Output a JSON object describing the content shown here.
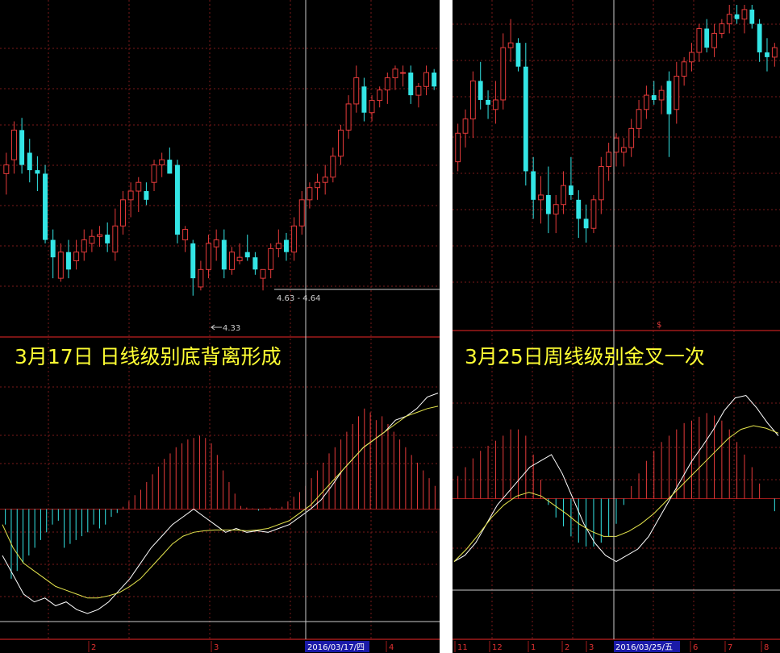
{
  "colors": {
    "background": "#000000",
    "up": "#e53a3a",
    "down": "#33e5e5",
    "grid": "#7a1a1a",
    "border": "#a01a1a",
    "dif": "#ffffff",
    "dea": "#e6e64d",
    "annotation": "#ffff33",
    "date_box": "#1a1aa8"
  },
  "chart_data": [
    {
      "type": "candlestick",
      "panel": "left-daily",
      "annotation": "3月17日 日线级别底背离形成",
      "price_labels": {
        "low_marker": "4.33",
        "cursor_range": "4.63 - 4.64"
      },
      "cursor_date": "2016/03/17/四",
      "x_tick_labels": [
        "2",
        "3",
        "4"
      ],
      "price_range": [
        4.1,
        5.95
      ],
      "candles": [
        [
          5.0,
          5.12,
          4.88,
          5.05
        ],
        [
          5.08,
          5.3,
          5.0,
          5.25
        ],
        [
          5.25,
          5.32,
          5.0,
          5.05
        ],
        [
          5.12,
          5.2,
          4.95,
          5.02
        ],
        [
          5.02,
          5.1,
          4.9,
          5.0
        ],
        [
          5.0,
          5.05,
          4.6,
          4.62
        ],
        [
          4.62,
          4.68,
          4.4,
          4.52
        ],
        [
          4.4,
          4.6,
          4.38,
          4.55
        ],
        [
          4.55,
          4.62,
          4.4,
          4.45
        ],
        [
          4.5,
          4.62,
          4.45,
          4.55
        ],
        [
          4.55,
          4.68,
          4.5,
          4.62
        ],
        [
          4.6,
          4.68,
          4.55,
          4.64
        ],
        [
          4.64,
          4.7,
          4.58,
          4.65
        ],
        [
          4.65,
          4.72,
          4.55,
          4.6
        ],
        [
          4.55,
          4.8,
          4.5,
          4.7
        ],
        [
          4.7,
          4.9,
          4.65,
          4.85
        ],
        [
          4.85,
          4.95,
          4.75,
          4.9
        ],
        [
          4.9,
          4.98,
          4.78,
          4.95
        ],
        [
          4.9,
          4.95,
          4.82,
          4.85
        ],
        [
          4.95,
          5.08,
          4.9,
          5.05
        ],
        [
          5.05,
          5.12,
          4.98,
          5.08
        ],
        [
          5.08,
          5.15,
          5.0,
          5.0
        ],
        [
          5.05,
          5.08,
          4.6,
          4.65
        ],
        [
          4.62,
          4.7,
          4.55,
          4.68
        ],
        [
          4.6,
          4.62,
          4.3,
          4.4
        ],
        [
          4.35,
          4.5,
          4.33,
          4.45
        ],
        [
          4.45,
          4.65,
          4.4,
          4.6
        ],
        [
          4.58,
          4.68,
          4.5,
          4.62
        ],
        [
          4.62,
          4.68,
          4.4,
          4.45
        ],
        [
          4.45,
          4.58,
          4.42,
          4.55
        ],
        [
          4.5,
          4.6,
          4.48,
          4.52
        ],
        [
          4.55,
          4.65,
          4.5,
          4.52
        ],
        [
          4.52,
          4.55,
          4.42,
          4.45
        ],
        [
          4.4,
          4.45,
          4.33,
          4.45
        ],
        [
          4.45,
          4.6,
          4.4,
          4.57
        ],
        [
          4.57,
          4.68,
          4.52,
          4.6
        ],
        [
          4.62,
          4.66,
          4.5,
          4.55
        ],
        [
          4.55,
          4.75,
          4.5,
          4.7
        ],
        [
          4.7,
          4.9,
          4.65,
          4.85
        ],
        [
          4.85,
          4.95,
          4.8,
          4.92
        ],
        [
          4.92,
          5.0,
          4.85,
          4.95
        ],
        [
          4.95,
          5.05,
          4.88,
          4.98
        ],
        [
          4.98,
          5.15,
          4.95,
          5.1
        ],
        [
          5.1,
          5.28,
          5.05,
          5.25
        ],
        [
          5.25,
          5.45,
          5.2,
          5.4
        ],
        [
          5.4,
          5.62,
          5.35,
          5.55
        ],
        [
          5.5,
          5.55,
          5.3,
          5.35
        ],
        [
          5.35,
          5.45,
          5.3,
          5.42
        ],
        [
          5.42,
          5.5,
          5.38,
          5.48
        ],
        [
          5.48,
          5.58,
          5.4,
          5.55
        ],
        [
          5.55,
          5.62,
          5.48,
          5.6
        ],
        [
          5.58,
          5.62,
          5.5,
          5.58
        ],
        [
          5.58,
          5.62,
          5.4,
          5.45
        ],
        [
          5.45,
          5.52,
          5.38,
          5.5
        ],
        [
          5.5,
          5.62,
          5.45,
          5.58
        ],
        [
          5.58,
          5.6,
          5.48,
          5.5
        ]
      ],
      "macd": {
        "zero_line": 0,
        "range": [
          -0.16,
          0.16
        ],
        "bars": [
          -0.02,
          -0.09,
          -0.08,
          -0.07,
          -0.06,
          -0.05,
          -0.04,
          -0.03,
          -0.02,
          -0.015,
          -0.05,
          -0.045,
          -0.04,
          -0.035,
          -0.03,
          -0.02,
          -0.025,
          -0.02,
          -0.01,
          -0.005,
          0.003,
          0.01,
          0.018,
          0.025,
          0.035,
          0.045,
          0.055,
          0.065,
          0.072,
          0.08,
          0.085,
          0.09,
          0.092,
          0.095,
          0.092,
          0.085,
          0.07,
          0.05,
          0.035,
          0.02,
          0.004,
          0.002,
          0.001,
          -0.002,
          0.001,
          0.002,
          0.001,
          0.003,
          0.01,
          0.016,
          0.022,
          0.03,
          0.04,
          0.05,
          0.06,
          0.072,
          0.08,
          0.09,
          0.1,
          0.11,
          0.12,
          0.13,
          0.125,
          0.115,
          0.12,
          0.11,
          0.1,
          0.09,
          0.08,
          0.07,
          0.06,
          0.05,
          0.04,
          0.03
        ],
        "dif": [
          -0.06,
          -0.085,
          -0.11,
          -0.12,
          -0.115,
          -0.125,
          -0.12,
          -0.13,
          -0.135,
          -0.13,
          -0.12,
          -0.105,
          -0.09,
          -0.07,
          -0.05,
          -0.035,
          -0.02,
          -0.01,
          0.0,
          -0.01,
          -0.02,
          -0.03,
          -0.025,
          -0.03,
          -0.028,
          -0.03,
          -0.025,
          -0.02,
          -0.01,
          0.0,
          0.012,
          0.03,
          0.05,
          0.065,
          0.08,
          0.09,
          0.1,
          0.115,
          0.12,
          0.13,
          0.145,
          0.15
        ],
        "dea": [
          -0.02,
          -0.05,
          -0.07,
          -0.08,
          -0.09,
          -0.1,
          -0.105,
          -0.11,
          -0.115,
          -0.115,
          -0.112,
          -0.108,
          -0.1,
          -0.09,
          -0.075,
          -0.06,
          -0.045,
          -0.035,
          -0.03,
          -0.028,
          -0.027,
          -0.027,
          -0.027,
          -0.028,
          -0.027,
          -0.025,
          -0.02,
          -0.015,
          -0.005,
          0.005,
          0.02,
          0.035,
          0.05,
          0.065,
          0.08,
          0.09,
          0.1,
          0.11,
          0.12,
          0.125,
          0.13,
          0.133
        ]
      }
    },
    {
      "type": "candlestick",
      "panel": "right-weekly",
      "annotation": "3月25日周线级别金叉一次",
      "cursor_date": "2016/03/25/五",
      "x_tick_labels": [
        "11",
        "12",
        "1",
        "2",
        "3",
        "6",
        "7",
        "8"
      ],
      "price_range": [
        3.1,
        9.0
      ],
      "candles": [
        [
          5.7,
          6.5,
          5.5,
          6.3
        ],
        [
          6.3,
          6.8,
          6.0,
          6.6
        ],
        [
          6.6,
          7.6,
          6.2,
          7.4
        ],
        [
          7.4,
          7.8,
          6.8,
          7.0
        ],
        [
          7.0,
          7.2,
          6.6,
          6.9
        ],
        [
          6.8,
          7.4,
          6.5,
          7.0
        ],
        [
          7.0,
          8.4,
          6.8,
          8.1
        ],
        [
          8.1,
          8.7,
          7.8,
          8.2
        ],
        [
          8.2,
          8.3,
          7.6,
          7.7
        ],
        [
          7.7,
          8.2,
          5.2,
          5.5
        ],
        [
          5.5,
          5.8,
          4.5,
          4.9
        ],
        [
          4.9,
          5.4,
          4.4,
          5.0
        ],
        [
          5.0,
          5.6,
          4.2,
          4.6
        ],
        [
          4.6,
          5.0,
          4.2,
          4.8
        ],
        [
          4.8,
          5.5,
          4.6,
          5.2
        ],
        [
          5.2,
          5.8,
          4.9,
          5.0
        ],
        [
          4.9,
          5.1,
          4.1,
          4.5
        ],
        [
          4.5,
          4.8,
          4.0,
          4.3
        ],
        [
          4.3,
          5.0,
          4.2,
          4.9
        ],
        [
          4.9,
          5.8,
          4.6,
          5.6
        ],
        [
          5.6,
          6.1,
          5.3,
          5.9
        ],
        [
          5.9,
          6.3,
          5.6,
          6.2
        ],
        [
          5.9,
          6.2,
          5.6,
          6.0
        ],
        [
          6.0,
          6.6,
          5.8,
          6.4
        ],
        [
          6.4,
          7.0,
          6.2,
          6.8
        ],
        [
          6.8,
          7.3,
          6.6,
          7.1
        ],
        [
          7.1,
          7.4,
          6.9,
          7.0
        ],
        [
          7.0,
          7.3,
          6.7,
          7.2
        ],
        [
          7.4,
          7.6,
          5.8,
          6.7
        ],
        [
          6.8,
          7.8,
          6.5,
          7.5
        ],
        [
          7.5,
          7.9,
          7.3,
          7.8
        ],
        [
          7.8,
          8.2,
          7.6,
          8.0
        ],
        [
          8.0,
          8.6,
          7.8,
          8.5
        ],
        [
          8.5,
          8.7,
          8.0,
          8.1
        ],
        [
          8.1,
          8.6,
          7.9,
          8.4
        ],
        [
          8.4,
          8.7,
          8.3,
          8.6
        ],
        [
          8.6,
          9.0,
          8.4,
          8.8
        ],
        [
          8.8,
          9.0,
          8.6,
          8.7
        ],
        [
          8.7,
          9.0,
          8.4,
          8.9
        ],
        [
          8.9,
          9.0,
          8.5,
          8.6
        ],
        [
          8.6,
          8.7,
          7.8,
          8.0
        ],
        [
          8.0,
          8.3,
          7.6,
          7.9
        ],
        [
          7.9,
          8.2,
          7.7,
          8.1
        ]
      ],
      "macd": {
        "zero_line": 0,
        "range": [
          -0.65,
          0.9
        ],
        "bars": [
          0.18,
          0.25,
          0.32,
          0.38,
          0.42,
          0.46,
          0.5,
          0.55,
          0.55,
          0.5,
          0.35,
          0.15,
          -0.05,
          -0.15,
          -0.22,
          -0.3,
          -0.35,
          -0.38,
          -0.38,
          -0.35,
          -0.3,
          -0.2,
          -0.05,
          0.1,
          0.2,
          0.3,
          0.38,
          0.45,
          0.5,
          0.55,
          0.6,
          0.62,
          0.65,
          0.68,
          0.66,
          0.62,
          0.55,
          0.45,
          0.35,
          0.25,
          0.12,
          0.0,
          -0.1
        ],
        "dif": [
          -0.5,
          -0.45,
          -0.35,
          -0.2,
          -0.05,
          0.05,
          0.15,
          0.25,
          0.3,
          0.35,
          0.2,
          0.0,
          -0.2,
          -0.35,
          -0.45,
          -0.5,
          -0.45,
          -0.4,
          -0.3,
          -0.15,
          0.0,
          0.15,
          0.3,
          0.42,
          0.55,
          0.7,
          0.8,
          0.82,
          0.72,
          0.6,
          0.5
        ],
        "dea": [
          -0.5,
          -0.4,
          -0.28,
          -0.15,
          -0.05,
          0.02,
          0.05,
          0.02,
          -0.05,
          -0.12,
          -0.2,
          -0.26,
          -0.3,
          -0.3,
          -0.26,
          -0.2,
          -0.12,
          -0.02,
          0.08,
          0.18,
          0.28,
          0.38,
          0.48,
          0.55,
          0.58,
          0.56,
          0.52
        ]
      }
    }
  ]
}
